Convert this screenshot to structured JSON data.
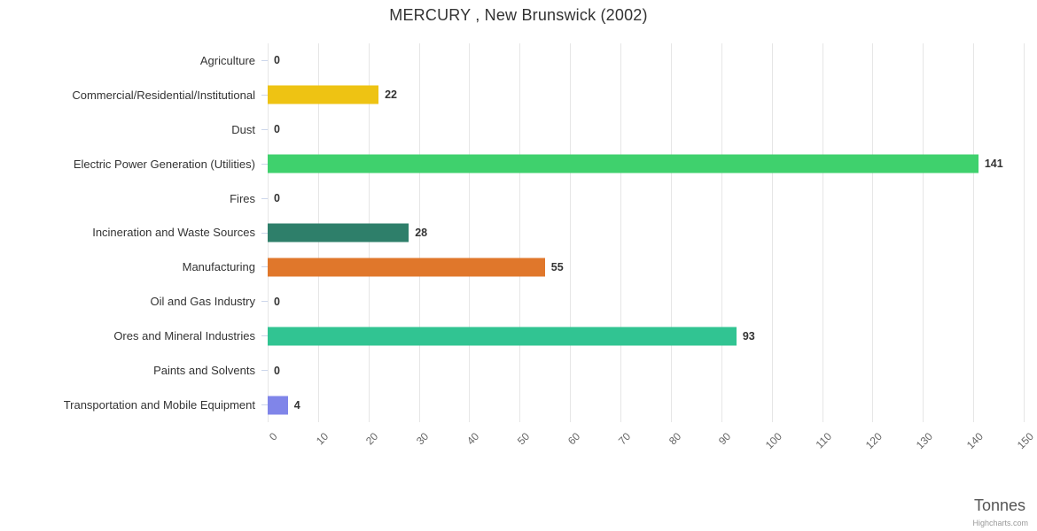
{
  "title": "MERCURY , New Brunswick (2002)",
  "credit": "Highcharts.com",
  "chart_data": {
    "type": "bar",
    "orientation": "horizontal",
    "title": "MERCURY , New Brunswick (2002)",
    "categories": [
      "Agriculture",
      "Commercial/Residential/Institutional",
      "Dust",
      "Electric Power Generation (Utilities)",
      "Fires",
      "Incineration and Waste Sources",
      "Manufacturing",
      "Oil and Gas Industry",
      "Ores and Mineral Industries",
      "Paints and Solvents",
      "Transportation and Mobile Equipment"
    ],
    "values": [
      0,
      22,
      0,
      141,
      0,
      28,
      55,
      0,
      93,
      0,
      4
    ],
    "bar_colors": [
      "#7cb5ec",
      "#eec313",
      "#90ed7d",
      "#3fd16d",
      "#f7a35c",
      "#2e7f6a",
      "#e0772b",
      "#f15c80",
      "#31c492",
      "#e4d354",
      "#8085e9"
    ],
    "xlabel": "Tonnes",
    "xlim": [
      0,
      150
    ],
    "x_ticks": [
      0,
      10,
      20,
      30,
      40,
      50,
      60,
      70,
      80,
      90,
      100,
      110,
      120,
      130,
      140,
      150
    ],
    "grid": true,
    "legend": false,
    "value_labels_shown": true
  },
  "colors": {
    "background": "#ffffff",
    "grid": "#e6e6e6",
    "axis_line": "#ccd6eb",
    "tick": "#ccd6eb",
    "title_text": "#333333",
    "category_text": "#333333",
    "value_text": "#333333",
    "x_tick_text": "#666666",
    "axis_title_text": "#555555",
    "credit_text": "#999999"
  }
}
